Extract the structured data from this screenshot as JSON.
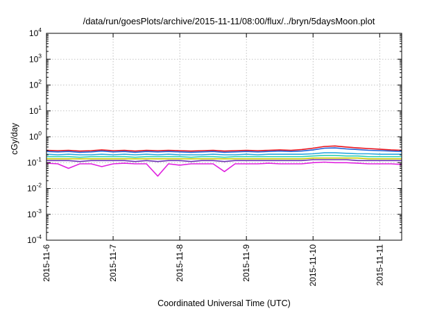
{
  "chart_data": {
    "type": "line",
    "title": "/data/run/goesPlots/archive/2015-11-11/08:00/flux/../bryn/5daysMoon.plot",
    "xlabel": "Coordinated Universal Time (UTC)",
    "ylabel": "cGy/day",
    "yscale": "log",
    "ylim": [
      0.0001,
      10000
    ],
    "xlim": [
      0,
      5.33
    ],
    "x_ticks": [
      {
        "label": "2015-11-6",
        "x": 0
      },
      {
        "label": "2015-11-7",
        "x": 1
      },
      {
        "label": "2015-11-8",
        "x": 2
      },
      {
        "label": "2015-11-9",
        "x": 3
      },
      {
        "label": "2015-11-10",
        "x": 4
      },
      {
        "label": "2015-11-11",
        "x": 5
      }
    ],
    "y_ticks": [
      {
        "base": "10",
        "exp": "4",
        "value": 10000
      },
      {
        "base": "10",
        "exp": "3",
        "value": 1000
      },
      {
        "base": "10",
        "exp": "2",
        "value": 100
      },
      {
        "base": "10",
        "exp": "1",
        "value": 10
      },
      {
        "base": "10",
        "exp": "0",
        "value": 1
      },
      {
        "base": "10",
        "exp": "-1",
        "value": 0.1
      },
      {
        "base": "10",
        "exp": "-2",
        "value": 0.01
      },
      {
        "base": "10",
        "exp": "-3",
        "value": 0.001
      },
      {
        "base": "10",
        "exp": "-4",
        "value": 0.0001
      }
    ],
    "grid": true,
    "x": [
      0,
      0.17,
      0.33,
      0.5,
      0.67,
      0.83,
      1.0,
      1.17,
      1.33,
      1.5,
      1.67,
      1.83,
      2.0,
      2.17,
      2.33,
      2.5,
      2.67,
      2.83,
      3.0,
      3.17,
      3.33,
      3.5,
      3.67,
      3.83,
      4.0,
      4.17,
      4.33,
      4.5,
      4.67,
      4.83,
      5.0,
      5.17,
      5.33
    ],
    "series": [
      {
        "color": "#e8101a",
        "values": [
          0.3,
          0.29,
          0.3,
          0.28,
          0.29,
          0.31,
          0.29,
          0.3,
          0.28,
          0.3,
          0.29,
          0.3,
          0.29,
          0.28,
          0.29,
          0.3,
          0.28,
          0.29,
          0.3,
          0.29,
          0.3,
          0.31,
          0.3,
          0.32,
          0.36,
          0.42,
          0.44,
          0.4,
          0.37,
          0.35,
          0.33,
          0.31,
          0.3
        ]
      },
      {
        "color": "#1f5fd6",
        "values": [
          0.27,
          0.26,
          0.27,
          0.25,
          0.26,
          0.28,
          0.26,
          0.27,
          0.25,
          0.27,
          0.26,
          0.27,
          0.26,
          0.25,
          0.26,
          0.27,
          0.25,
          0.26,
          0.27,
          0.26,
          0.27,
          0.28,
          0.27,
          0.28,
          0.31,
          0.36,
          0.37,
          0.34,
          0.32,
          0.3,
          0.29,
          0.28,
          0.27
        ]
      },
      {
        "color": "#29a8e0",
        "values": [
          0.21,
          0.2,
          0.21,
          0.2,
          0.2,
          0.21,
          0.2,
          0.21,
          0.2,
          0.21,
          0.2,
          0.21,
          0.2,
          0.2,
          0.2,
          0.21,
          0.2,
          0.2,
          0.21,
          0.2,
          0.21,
          0.21,
          0.21,
          0.21,
          0.22,
          0.24,
          0.24,
          0.23,
          0.22,
          0.22,
          0.21,
          0.21,
          0.21
        ]
      },
      {
        "color": "#2fcfae",
        "values": [
          0.17,
          0.17,
          0.17,
          0.16,
          0.17,
          0.17,
          0.17,
          0.17,
          0.16,
          0.17,
          0.17,
          0.17,
          0.17,
          0.16,
          0.17,
          0.17,
          0.16,
          0.17,
          0.17,
          0.17,
          0.17,
          0.17,
          0.17,
          0.17,
          0.18,
          0.19,
          0.19,
          0.18,
          0.18,
          0.17,
          0.17,
          0.17,
          0.17
        ]
      },
      {
        "color": "#c8c800",
        "values": [
          0.14,
          0.14,
          0.14,
          0.14,
          0.14,
          0.14,
          0.14,
          0.14,
          0.14,
          0.14,
          0.14,
          0.14,
          0.14,
          0.14,
          0.14,
          0.14,
          0.14,
          0.14,
          0.14,
          0.14,
          0.14,
          0.14,
          0.14,
          0.14,
          0.15,
          0.15,
          0.15,
          0.15,
          0.15,
          0.14,
          0.14,
          0.14,
          0.14
        ]
      },
      {
        "color": "#6b2fb0",
        "values": [
          0.12,
          0.12,
          0.12,
          0.11,
          0.12,
          0.12,
          0.12,
          0.12,
          0.11,
          0.12,
          0.11,
          0.12,
          0.12,
          0.11,
          0.12,
          0.12,
          0.11,
          0.12,
          0.12,
          0.12,
          0.12,
          0.12,
          0.12,
          0.12,
          0.13,
          0.13,
          0.13,
          0.13,
          0.12,
          0.12,
          0.12,
          0.12,
          0.12
        ]
      },
      {
        "color": "#e020e0",
        "values": [
          0.095,
          0.09,
          0.06,
          0.09,
          0.09,
          0.07,
          0.09,
          0.095,
          0.09,
          0.09,
          0.03,
          0.09,
          0.08,
          0.09,
          0.09,
          0.09,
          0.045,
          0.09,
          0.09,
          0.09,
          0.095,
          0.09,
          0.09,
          0.09,
          0.1,
          0.105,
          0.1,
          0.1,
          0.095,
          0.09,
          0.09,
          0.09,
          0.085
        ]
      }
    ]
  }
}
